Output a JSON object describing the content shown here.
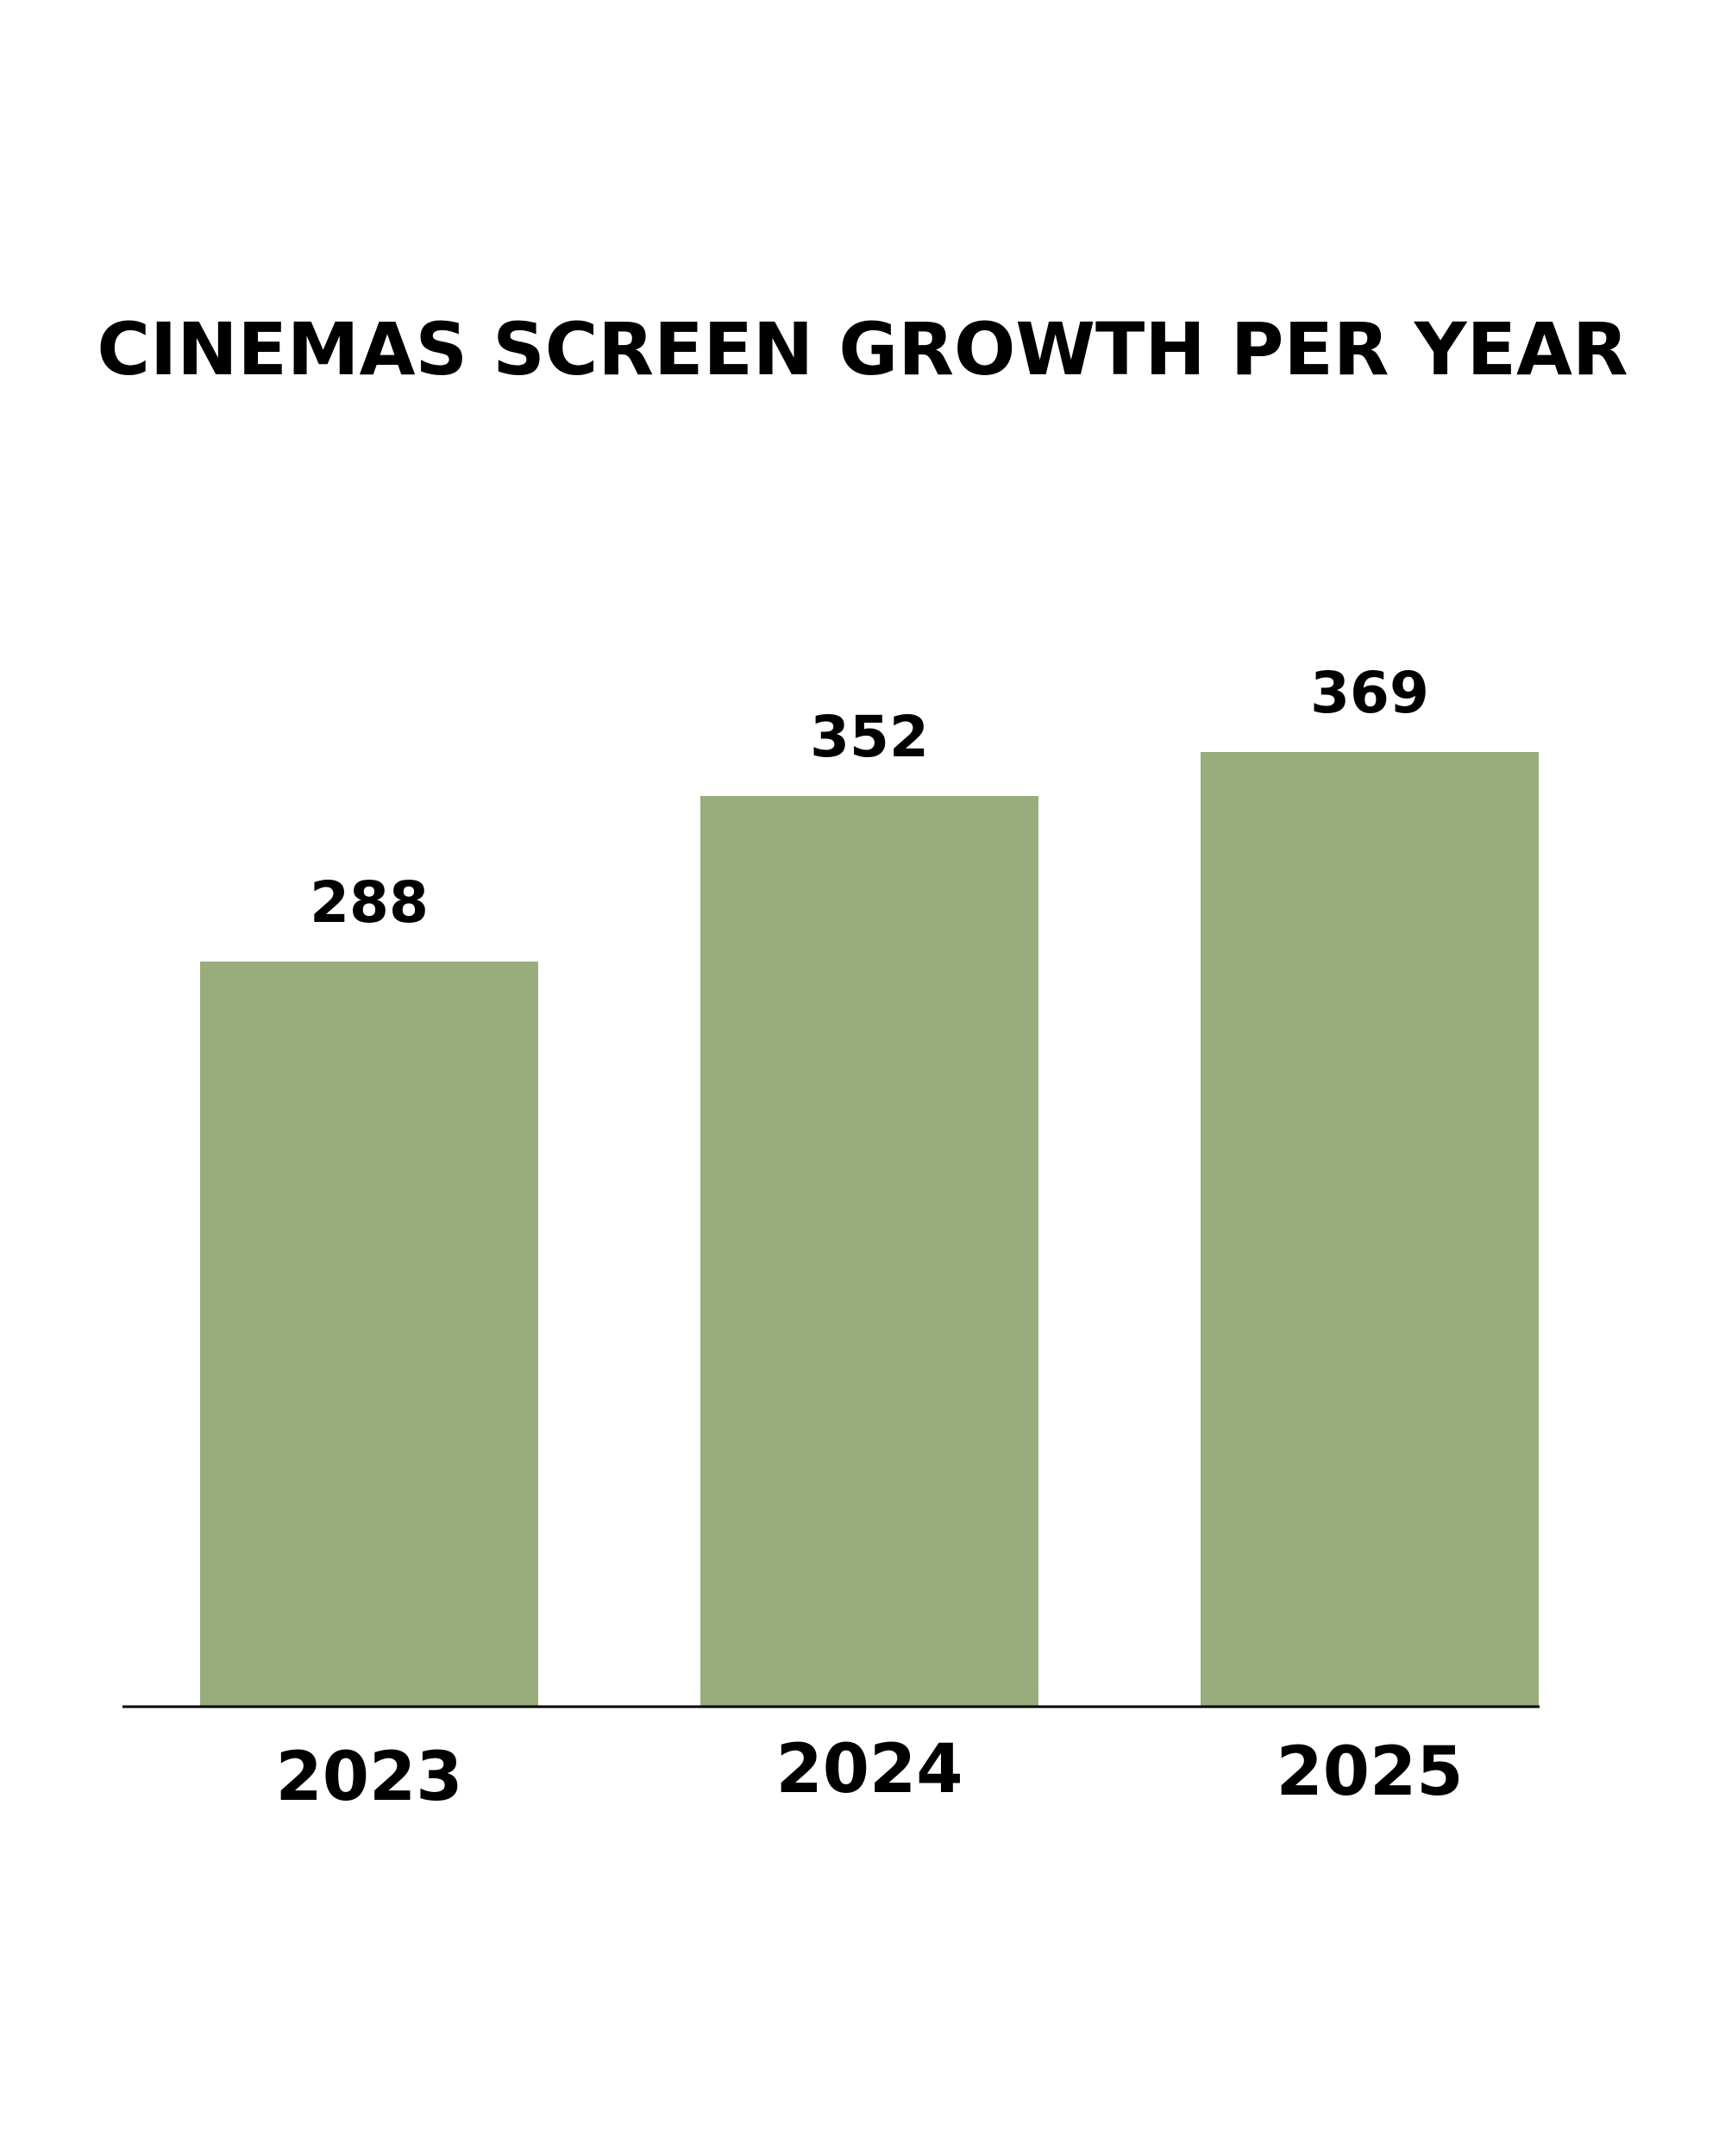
{
  "chart_data": {
    "type": "bar",
    "title": "CINEMAS SCREEN GROWTH PER YEAR",
    "categories": [
      "2023",
      "2024",
      "2025"
    ],
    "values": [
      288,
      352,
      369
    ],
    "data_labels": [
      "288",
      "352",
      "369"
    ],
    "xlabel": "",
    "ylabel": "",
    "grid": false,
    "legend": "none",
    "colors": {
      "bar": "#99ac7b",
      "axis": "#000000",
      "text": "#000000",
      "background": "#ffffff"
    }
  }
}
